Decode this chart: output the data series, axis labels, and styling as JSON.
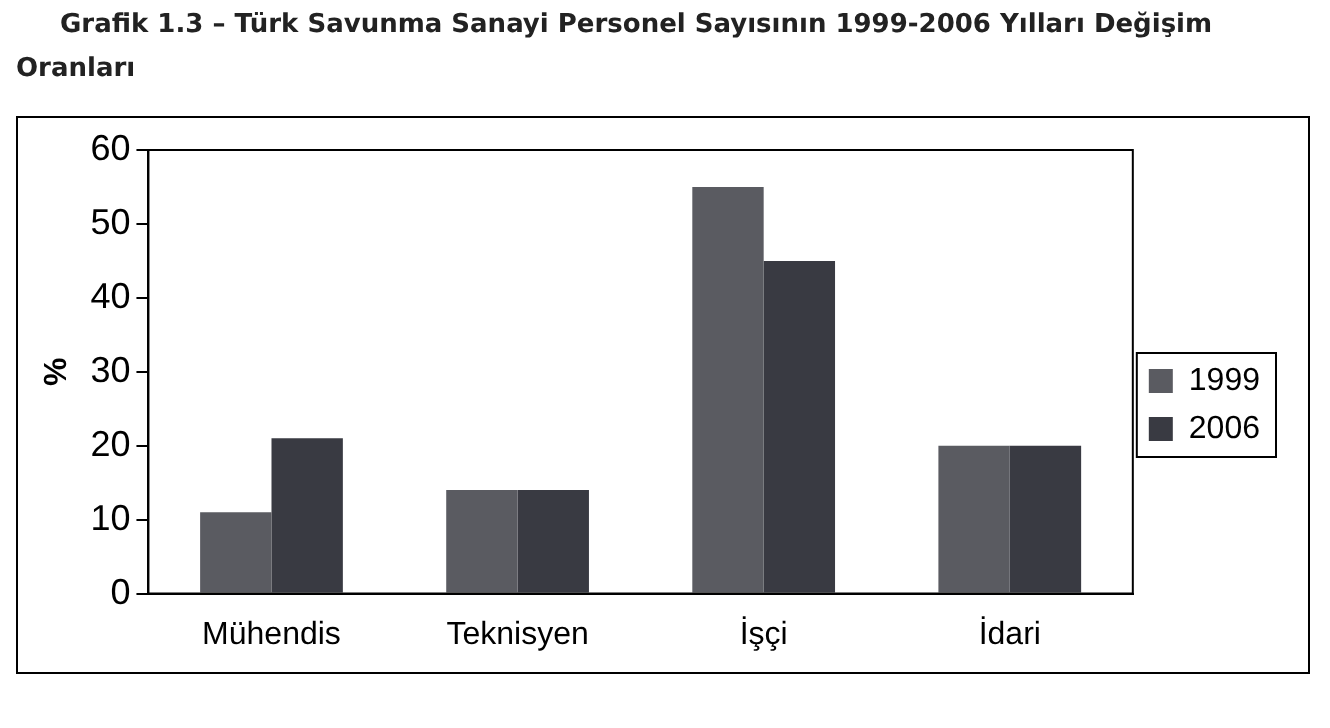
{
  "chart_data": {
    "type": "bar",
    "title": "Grafik 1.3 – Türk Savunma Sanayi Personel Sayısının 1999-2006 Yılları Değişim Oranları",
    "ylabel": "%",
    "categories": [
      "Mühendis",
      "Teknisyen",
      "İşçi",
      "İdari"
    ],
    "series": [
      {
        "name": "1999",
        "color": "#5a5b61",
        "values": [
          11,
          14,
          55,
          20
        ]
      },
      {
        "name": "2006",
        "color": "#393a42",
        "values": [
          21,
          14,
          45,
          20
        ]
      }
    ],
    "ylim": [
      0,
      60
    ],
    "yticks": [
      0,
      10,
      20,
      30,
      40,
      50,
      60
    ],
    "grid": false,
    "legend": "right"
  }
}
